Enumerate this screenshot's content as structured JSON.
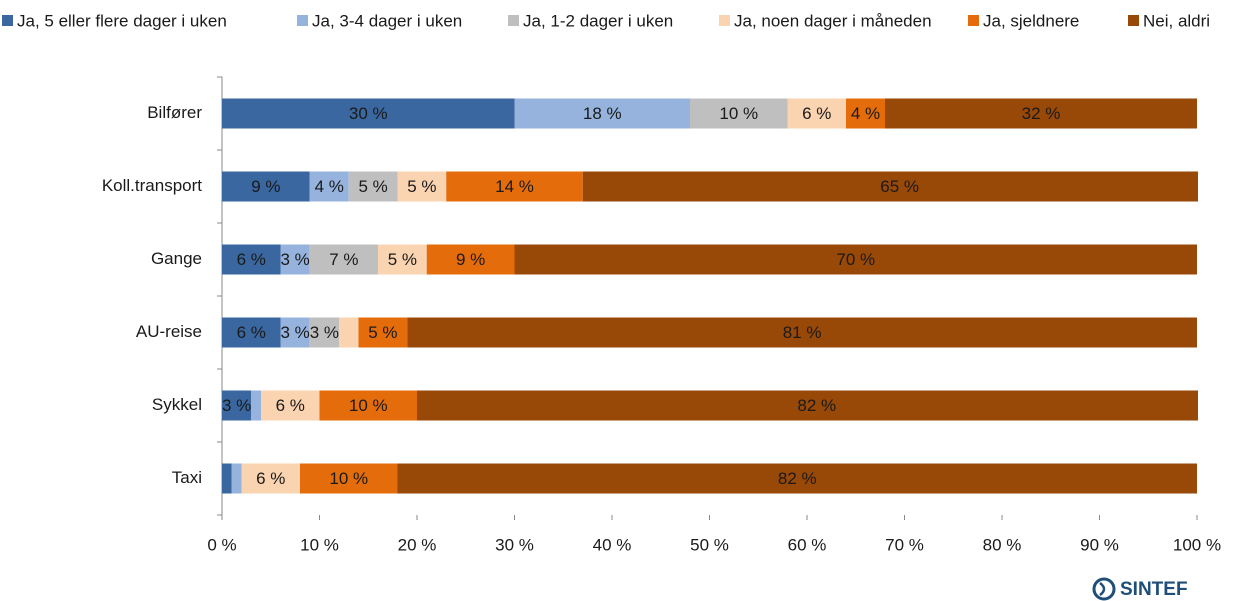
{
  "chart_data": {
    "type": "stacked-barh",
    "categories": [
      "Bilfører",
      "Koll.transport",
      "Gange",
      "AU-reise",
      "Sykkel",
      "Taxi"
    ],
    "series": [
      {
        "name": "Ja, 5 eller flere dager i uken",
        "color": "#3a67a0",
        "values": [
          30,
          9,
          6,
          6,
          3,
          1
        ],
        "value_labels": [
          "30 %",
          "9 %",
          "6 %",
          "6 %",
          "3 %",
          null
        ]
      },
      {
        "name": "Ja, 3-4 dager i uken",
        "color": "#95b3dc",
        "values": [
          18,
          4,
          3,
          3,
          1,
          1
        ],
        "value_labels": [
          "18 %",
          "4 %",
          "3 %",
          "3 %",
          null,
          null
        ]
      },
      {
        "name": "Ja, 1-2 dager i uken",
        "color": "#bfbfbf",
        "values": [
          10,
          5,
          7,
          3,
          0,
          0
        ],
        "value_labels": [
          "10 %",
          "5 %",
          "7 %",
          "3 %",
          null,
          null
        ]
      },
      {
        "name": "Ja, noen dager i måneden",
        "color": "#fad3b1",
        "values": [
          6,
          5,
          5,
          2,
          6,
          6
        ],
        "value_labels": [
          "6 %",
          "5 %",
          "5 %",
          null,
          "6 %",
          "6 %"
        ]
      },
      {
        "name": "Ja, sjeldnere",
        "color": "#e46c0a",
        "values": [
          4,
          14,
          9,
          5,
          10,
          10
        ],
        "value_labels": [
          "4 %",
          "14 %",
          "9 %",
          "5 %",
          "10 %",
          "10 %"
        ]
      },
      {
        "name": "Nei, aldri",
        "color": "#984807",
        "values": [
          32,
          65,
          70,
          81,
          82,
          82
        ],
        "value_labels": [
          "32 %",
          "65 %",
          "70 %",
          "81 %",
          "82 %",
          "82 %"
        ]
      }
    ],
    "xlim": [
      0,
      100
    ],
    "xticks": [
      {
        "value": 0,
        "label": "0 %"
      },
      {
        "value": 10,
        "label": "10 %"
      },
      {
        "value": 20,
        "label": "20 %"
      },
      {
        "value": 30,
        "label": "30 %"
      },
      {
        "value": 40,
        "label": "40 %"
      },
      {
        "value": 50,
        "label": "50 %"
      },
      {
        "value": 60,
        "label": "60 %"
      },
      {
        "value": 70,
        "label": "70 %"
      },
      {
        "value": 80,
        "label": "80 %"
      },
      {
        "value": 90,
        "label": "90 %"
      },
      {
        "value": 100,
        "label": "100 %"
      }
    ],
    "legend": "top",
    "logo": "SINTEF"
  }
}
